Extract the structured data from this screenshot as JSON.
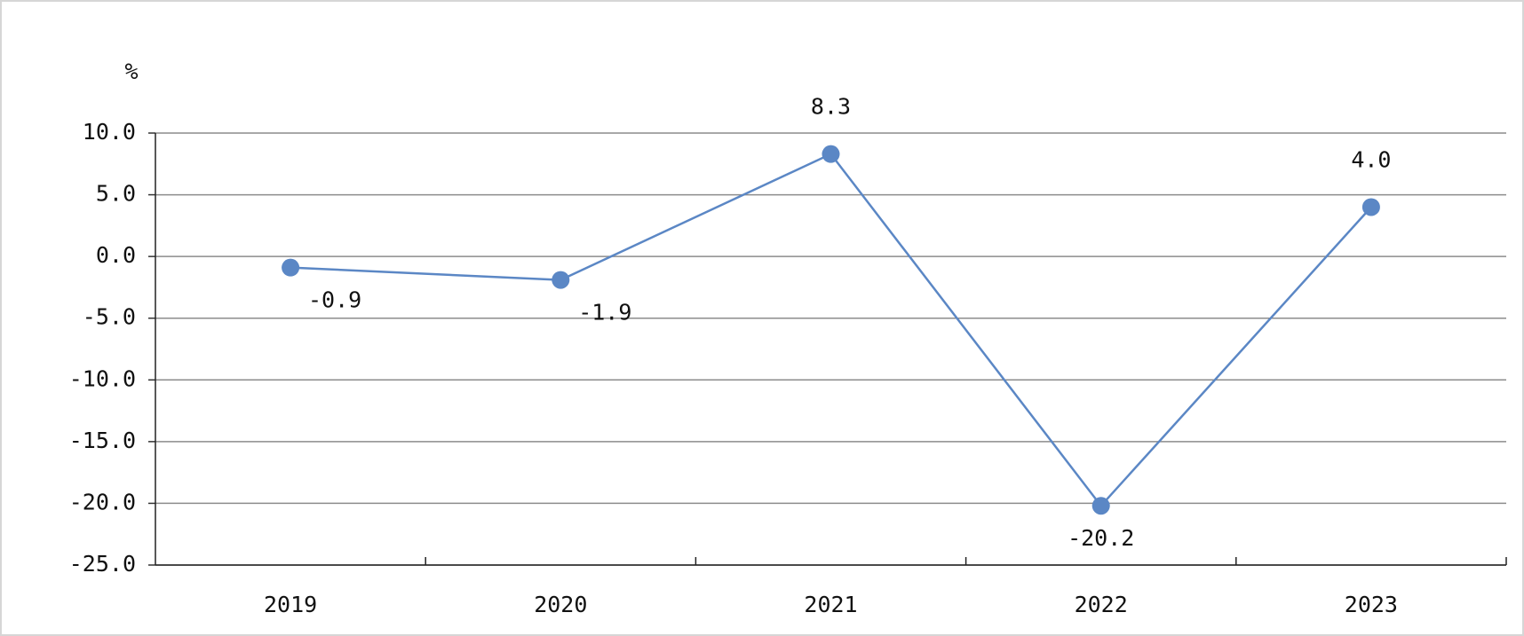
{
  "chart_data": {
    "type": "line",
    "y_unit": "%",
    "categories": [
      "2019",
      "2020",
      "2021",
      "2022",
      "2023"
    ],
    "series": [
      {
        "color": "#5b87c5",
        "values": [
          -0.9,
          -1.9,
          8.3,
          -20.2,
          4.0
        ],
        "value_labels": [
          "-0.9",
          "-1.9",
          "8.3",
          "-20.2",
          "4.0"
        ]
      }
    ],
    "ylim": [
      -25,
      10
    ],
    "yticks": [
      {
        "value": -25,
        "label": "-25.0"
      },
      {
        "value": -20,
        "label": "-20.0"
      },
      {
        "value": -15,
        "label": "-15.0"
      },
      {
        "value": -10,
        "label": "-10.0"
      },
      {
        "value": -5,
        "label": "-5.0"
      },
      {
        "value": 0,
        "label": "0.0"
      },
      {
        "value": 5,
        "label": "5.0"
      },
      {
        "value": 10,
        "label": "10.0"
      }
    ],
    "grid": true
  }
}
